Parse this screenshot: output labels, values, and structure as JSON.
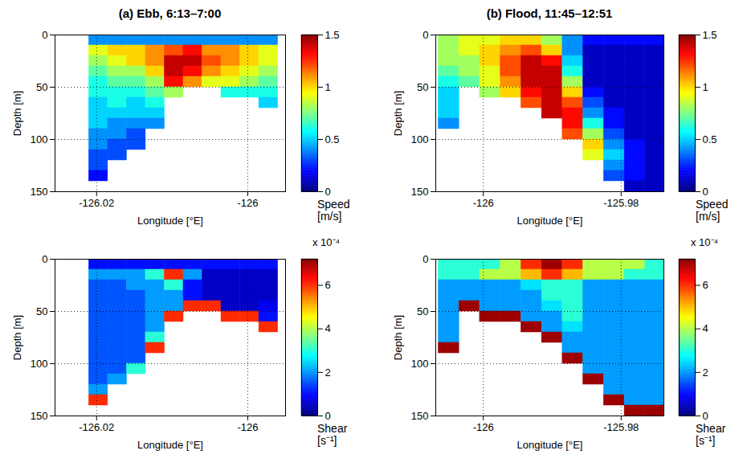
{
  "chart_data": [
    {
      "type": "heatmap",
      "title": "(a) Ebb, 6:13–7:00",
      "xlabel": "Longitude [°E]",
      "ylabel": "Depth [m]",
      "xlim": [
        -126.0255,
        -125.995
      ],
      "xticks": [
        -126.02,
        -126
      ],
      "ylim": [
        150,
        0
      ],
      "yticks": [
        0,
        50,
        100,
        150
      ],
      "grid": true,
      "lon_edges": [
        -126.021,
        -126.0185,
        -126.016,
        -126.0135,
        -126.011,
        -126.0085,
        -126.006,
        -126.0035,
        -126.001,
        -125.9985,
        -125.996
      ],
      "depth_edges": [
        0,
        10,
        20,
        30,
        40,
        50,
        60,
        70,
        80,
        90,
        100,
        110,
        120,
        130,
        140,
        150
      ],
      "cells": [
        [
          0.4,
          0.4,
          0.4,
          0.4,
          0.4,
          0.4,
          0.4,
          0.4,
          0.4,
          0.4
        ],
        [
          0.9,
          1.0,
          1.0,
          1.1,
          1.2,
          1.3,
          1.1,
          1.1,
          1.0,
          0.9
        ],
        [
          0.8,
          0.9,
          1.0,
          1.1,
          1.4,
          1.4,
          1.2,
          1.1,
          1.0,
          0.9
        ],
        [
          0.7,
          0.8,
          0.8,
          1.0,
          1.4,
          1.3,
          1.1,
          1.0,
          0.9,
          0.8
        ],
        [
          0.6,
          0.7,
          0.7,
          0.8,
          1.3,
          1.1,
          0.9,
          0.9,
          0.8,
          0.7
        ],
        [
          0.6,
          0.6,
          0.6,
          0.7,
          0.8,
          null,
          null,
          0.6,
          0.6,
          0.6
        ],
        [
          0.5,
          0.6,
          0.5,
          0.6,
          null,
          null,
          null,
          null,
          null,
          0.5
        ],
        [
          0.5,
          0.5,
          0.5,
          0.5,
          null,
          null,
          null,
          null,
          null,
          null
        ],
        [
          0.5,
          0.4,
          0.4,
          0.4,
          null,
          null,
          null,
          null,
          null,
          null
        ],
        [
          0.4,
          0.4,
          0.3,
          null,
          null,
          null,
          null,
          null,
          null,
          null
        ],
        [
          0.4,
          0.3,
          0.3,
          null,
          null,
          null,
          null,
          null,
          null,
          null
        ],
        [
          0.3,
          0.3,
          null,
          null,
          null,
          null,
          null,
          null,
          null,
          null
        ],
        [
          0.3,
          null,
          null,
          null,
          null,
          null,
          null,
          null,
          null,
          null
        ],
        [
          0.2,
          null,
          null,
          null,
          null,
          null,
          null,
          null,
          null,
          null
        ],
        [
          null,
          null,
          null,
          null,
          null,
          null,
          null,
          null,
          null,
          null
        ]
      ],
      "colorbar": {
        "label": "Speed [m/s]",
        "range": [
          0,
          1.5
        ],
        "ticks": [
          0,
          0.5,
          1,
          1.5
        ]
      }
    },
    {
      "type": "heatmap",
      "title": "(b) Flood, 11:45–12:51",
      "xlabel": "Longitude [°E]",
      "ylabel": "Depth [m]",
      "xlim": [
        -126.0069,
        -125.9738
      ],
      "xticks": [
        -126,
        -125.98
      ],
      "ylim": [
        150,
        0
      ],
      "yticks": [
        0,
        50,
        100,
        150
      ],
      "grid": true,
      "lon_edges": [
        -126.0065,
        -126.0035,
        -126.0005,
        -125.9975,
        -125.9945,
        -125.9915,
        -125.9885,
        -125.9855,
        -125.9825,
        -125.9795,
        -125.9765,
        -125.9735
      ],
      "depth_edges": [
        0,
        10,
        20,
        30,
        40,
        50,
        60,
        70,
        80,
        90,
        100,
        110,
        120,
        130,
        140,
        150
      ],
      "cells": [
        [
          0.8,
          0.9,
          0.9,
          1.0,
          1.0,
          0.8,
          0.4,
          0.2,
          0.2,
          0.2,
          0.2
        ],
        [
          0.8,
          0.9,
          1.0,
          1.1,
          1.2,
          1.0,
          0.4,
          0.1,
          0.1,
          0.1,
          0.1
        ],
        [
          0.8,
          0.8,
          1.0,
          1.2,
          1.4,
          1.3,
          0.5,
          0.1,
          0.1,
          0.1,
          0.1
        ],
        [
          0.7,
          0.8,
          0.9,
          1.2,
          1.4,
          1.4,
          0.6,
          0.1,
          0.1,
          0.1,
          0.1
        ],
        [
          0.6,
          0.7,
          0.9,
          1.1,
          1.4,
          1.4,
          0.8,
          0.1,
          0.1,
          0.1,
          0.1
        ],
        [
          0.5,
          null,
          0.8,
          1.0,
          1.3,
          1.4,
          1.0,
          0.2,
          0.1,
          0.1,
          0.1
        ],
        [
          0.5,
          null,
          null,
          null,
          1.2,
          1.4,
          1.2,
          0.3,
          0.1,
          0.1,
          0.1
        ],
        [
          0.5,
          null,
          null,
          null,
          null,
          1.4,
          1.3,
          0.4,
          0.2,
          0.1,
          0.1
        ],
        [
          0.4,
          null,
          null,
          null,
          null,
          null,
          1.3,
          0.6,
          0.2,
          0.1,
          0.1
        ],
        [
          null,
          null,
          null,
          null,
          null,
          null,
          1.2,
          0.8,
          0.3,
          0.1,
          0.1
        ],
        [
          null,
          null,
          null,
          null,
          null,
          null,
          null,
          1.0,
          0.4,
          0.2,
          0.1
        ],
        [
          null,
          null,
          null,
          null,
          null,
          null,
          null,
          0.9,
          0.5,
          0.2,
          0.1
        ],
        [
          null,
          null,
          null,
          null,
          null,
          null,
          null,
          null,
          0.4,
          0.2,
          0.1
        ],
        [
          null,
          null,
          null,
          null,
          null,
          null,
          null,
          null,
          0.3,
          0.2,
          0.1
        ],
        [
          null,
          null,
          null,
          null,
          null,
          null,
          null,
          null,
          null,
          0.1,
          0.1
        ]
      ],
      "colorbar": {
        "label": "Speed [m/s]",
        "range": [
          0,
          1.5
        ],
        "ticks": [
          0,
          0.5,
          1,
          1.5
        ]
      }
    },
    {
      "type": "heatmap",
      "xlabel": "Longitude [°E]",
      "ylabel": "Depth [m]",
      "xlim": [
        -126.0255,
        -125.995
      ],
      "xticks": [
        -126.02,
        -126
      ],
      "ylim": [
        150,
        0
      ],
      "yticks": [
        0,
        50,
        100,
        150
      ],
      "grid": true,
      "lon_edges": [
        -126.021,
        -126.0185,
        -126.016,
        -126.0135,
        -126.011,
        -126.0085,
        -126.006,
        -126.0035,
        -126.001,
        -125.9985,
        -125.996
      ],
      "depth_edges": [
        0,
        10,
        20,
        30,
        40,
        50,
        60,
        70,
        80,
        90,
        100,
        110,
        120,
        130,
        140,
        150
      ],
      "cells": [
        [
          0.0001,
          0.0001,
          0.0001,
          0.0001,
          0.0001,
          0.0001,
          0.0001,
          0.0001,
          0.0001,
          0.0001
        ],
        [
          0.0002,
          0.0002,
          0.0002,
          0.0003,
          0.0006,
          0.0002,
          5e-05,
          5e-05,
          5e-05,
          5e-05
        ],
        [
          0.00015,
          0.00015,
          0.0002,
          0.0002,
          0.0003,
          0.0001,
          5e-05,
          5e-05,
          5e-05,
          5e-05
        ],
        [
          0.00015,
          0.00015,
          0.00015,
          0.0002,
          0.0002,
          0.0001,
          5e-05,
          5e-05,
          5e-05,
          5e-05
        ],
        [
          0.00015,
          0.00015,
          0.00015,
          0.0002,
          0.0002,
          0.0006,
          0.0006,
          5e-05,
          5e-05,
          8e-05
        ],
        [
          0.00015,
          0.00015,
          0.00015,
          0.0002,
          0.0006,
          null,
          null,
          0.0006,
          0.0006,
          0.0001
        ],
        [
          0.00015,
          0.00015,
          0.00015,
          0.0002,
          null,
          null,
          null,
          null,
          null,
          0.0006
        ],
        [
          0.00015,
          0.00015,
          0.00015,
          0.0003,
          null,
          null,
          null,
          null,
          null,
          null
        ],
        [
          0.00015,
          0.00015,
          0.00015,
          0.0006,
          null,
          null,
          null,
          null,
          null,
          null
        ],
        [
          0.00015,
          0.00015,
          0.00015,
          null,
          null,
          null,
          null,
          null,
          null,
          null
        ],
        [
          0.00015,
          0.00015,
          0.0003,
          null,
          null,
          null,
          null,
          null,
          null,
          null
        ],
        [
          0.00015,
          0.0002,
          null,
          null,
          null,
          null,
          null,
          null,
          null,
          null
        ],
        [
          0.0002,
          null,
          null,
          null,
          null,
          null,
          null,
          null,
          null,
          null
        ],
        [
          0.0006,
          null,
          null,
          null,
          null,
          null,
          null,
          null,
          null,
          null
        ],
        [
          null,
          null,
          null,
          null,
          null,
          null,
          null,
          null,
          null,
          null
        ]
      ],
      "colorbar": {
        "label": "Shear [s⁻¹]",
        "multiplier": "x 10⁻⁴",
        "range": [
          0,
          0.00072
        ],
        "ticks": [
          0,
          {
            "value": 0.0002,
            "label": "2"
          },
          {
            "value": 0.0004,
            "label": "4"
          },
          {
            "value": 0.0006,
            "label": "6"
          }
        ]
      }
    },
    {
      "type": "heatmap",
      "xlabel": "Longitude [°E]",
      "ylabel": "Depth [m]",
      "xlim": [
        -126.0069,
        -125.9738
      ],
      "xticks": [
        -126,
        -125.98
      ],
      "ylim": [
        150,
        0
      ],
      "yticks": [
        0,
        50,
        100,
        150
      ],
      "grid": true,
      "lon_edges": [
        -126.0065,
        -126.0035,
        -126.0005,
        -125.9975,
        -125.9945,
        -125.9915,
        -125.9885,
        -125.9855,
        -125.9825,
        -125.9795,
        -125.9765,
        -125.9735
      ],
      "depth_edges": [
        0,
        10,
        20,
        30,
        40,
        50,
        60,
        70,
        80,
        90,
        100,
        110,
        120,
        130,
        140,
        150
      ],
      "cells": [
        [
          0.0003,
          0.0003,
          0.0003,
          0.0004,
          0.0006,
          0.0007,
          0.0006,
          0.0004,
          0.0004,
          0.0004,
          0.0003
        ],
        [
          0.0003,
          0.0003,
          0.0004,
          0.0004,
          0.0005,
          0.0006,
          0.0005,
          0.0004,
          0.0004,
          0.0003,
          0.0003
        ],
        [
          0.0002,
          0.0002,
          0.0002,
          0.0002,
          0.00025,
          0.0003,
          0.0003,
          0.0002,
          0.0002,
          0.0002,
          0.0002
        ],
        [
          0.0002,
          0.0002,
          0.0002,
          0.0002,
          0.0002,
          0.0003,
          0.0003,
          0.0002,
          0.0002,
          0.0002,
          0.0002
        ],
        [
          0.0002,
          0.0007,
          0.0002,
          0.0002,
          0.0002,
          0.00025,
          0.0003,
          0.0002,
          0.0002,
          0.0002,
          0.0002
        ],
        [
          0.0002,
          null,
          0.0007,
          0.0007,
          0.0002,
          0.0002,
          0.0003,
          0.0002,
          0.0002,
          0.0002,
          0.0002
        ],
        [
          0.0002,
          null,
          null,
          null,
          0.0007,
          0.0002,
          0.00025,
          0.0002,
          0.0002,
          0.0002,
          0.0002
        ],
        [
          0.0002,
          null,
          null,
          null,
          null,
          0.0007,
          0.0002,
          0.0002,
          0.0002,
          0.0002,
          0.0002
        ],
        [
          0.0007,
          null,
          null,
          null,
          null,
          null,
          0.0002,
          0.0002,
          0.0002,
          0.0002,
          0.0002
        ],
        [
          null,
          null,
          null,
          null,
          null,
          null,
          0.0007,
          0.0002,
          0.0002,
          0.0002,
          0.0002
        ],
        [
          null,
          null,
          null,
          null,
          null,
          null,
          null,
          0.0002,
          0.0002,
          0.0002,
          0.0002
        ],
        [
          null,
          null,
          null,
          null,
          null,
          null,
          null,
          0.0007,
          0.0002,
          0.0002,
          0.0002
        ],
        [
          null,
          null,
          null,
          null,
          null,
          null,
          null,
          null,
          0.0002,
          0.0002,
          0.0002
        ],
        [
          null,
          null,
          null,
          null,
          null,
          null,
          null,
          null,
          0.0007,
          0.0002,
          0.0002
        ],
        [
          null,
          null,
          null,
          null,
          null,
          null,
          null,
          null,
          null,
          0.0007,
          0.0007
        ]
      ],
      "colorbar": {
        "label": "Shear [s⁻¹]",
        "multiplier": "x 10⁻⁴",
        "range": [
          0,
          0.00072
        ],
        "ticks": [
          0,
          {
            "value": 0.0002,
            "label": "2"
          },
          {
            "value": 0.0004,
            "label": "4"
          },
          {
            "value": 0.0006,
            "label": "6"
          }
        ]
      }
    }
  ]
}
